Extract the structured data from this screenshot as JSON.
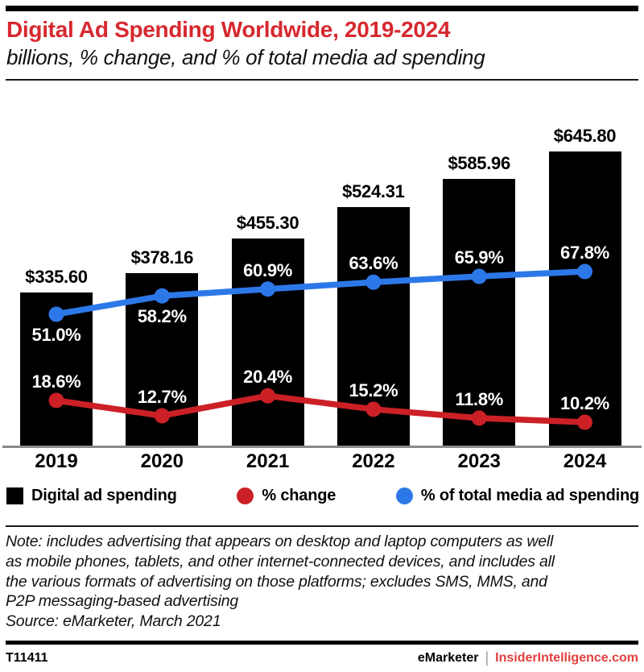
{
  "header": {
    "title": "Digital Ad Spending Worldwide, 2019-2024",
    "subtitle": "billions, % change, and % of total media ad spending"
  },
  "chart_data": {
    "type": "bar",
    "subtype": "bar-with-two-line-overlays",
    "title": "Digital Ad Spending Worldwide, 2019-2024",
    "categories": [
      "2019",
      "2020",
      "2021",
      "2022",
      "2023",
      "2024"
    ],
    "series": [
      {
        "name": "Digital ad spending",
        "type": "bar",
        "unit": "billions of US$",
        "color": "#000000",
        "values": [
          335.6,
          378.16,
          455.3,
          524.31,
          585.96,
          645.8
        ],
        "labels": [
          "$335.60",
          "$378.16",
          "$455.30",
          "$524.31",
          "$585.96",
          "$645.80"
        ]
      },
      {
        "name": "% change",
        "type": "line",
        "unit": "%",
        "color": "#cb2026",
        "values": [
          18.6,
          12.7,
          20.4,
          15.2,
          11.8,
          10.2
        ],
        "labels": [
          "18.6%",
          "12.7%",
          "20.4%",
          "15.2%",
          "11.8%",
          "10.2%"
        ],
        "label_positions": [
          "above",
          "above",
          "above",
          "above",
          "above",
          "above"
        ]
      },
      {
        "name": "% of total media ad spending",
        "type": "line",
        "unit": "%",
        "color": "#2d78e8",
        "values": [
          51.0,
          58.2,
          60.9,
          63.6,
          65.9,
          67.8
        ],
        "labels": [
          "51.0%",
          "58.2%",
          "60.9%",
          "63.6%",
          "65.9%",
          "67.8%"
        ],
        "label_positions": [
          "below",
          "below",
          "above",
          "above",
          "above",
          "above"
        ]
      }
    ],
    "xlabel": "",
    "ylabel": "",
    "grid": false,
    "value_axis_visible": false,
    "legend_position": "bottom"
  },
  "legend": {
    "swatches": [
      "square",
      "circle",
      "circle"
    ]
  },
  "note": "Note: includes advertising that appears on desktop and laptop computers as well\nas mobile phones, tablets, and other internet-connected devices, and includes all\nthe various formats of advertising on those platforms; excludes SMS, MMS, and\nP2P messaging-based advertising",
  "source": "Source: eMarketer, March 2021",
  "footer": {
    "id": "T11411",
    "brand": "eMarketer",
    "separator": "|",
    "site": "InsiderIntelligence.com"
  },
  "colors": {
    "title_red": "#d7282f",
    "bar_black": "#000000",
    "line_red": "#cb2026",
    "line_blue": "#2d78e8",
    "footer_site_red": "#e2403e",
    "axis_gray": "#8a8a8a"
  }
}
